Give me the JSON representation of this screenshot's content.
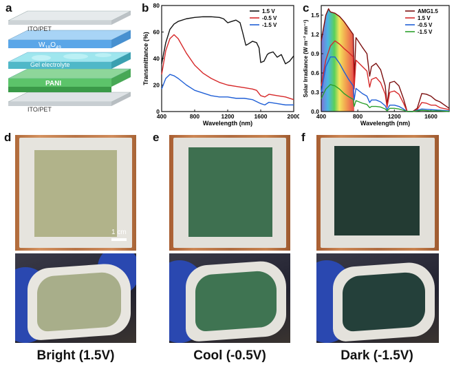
{
  "panels": {
    "a": "a",
    "b": "b",
    "c": "c",
    "d": "d",
    "e": "e",
    "f": "f"
  },
  "device_stack": {
    "layers": [
      "ITO/PET",
      "W18O49",
      "Gel electrolyte",
      "PANI",
      "ITO/PET"
    ],
    "w_main": "W",
    "w_sub1": "18",
    "w_o": "O",
    "w_sub2": "49"
  },
  "colors": {
    "black": "#111111",
    "red": "#d62728",
    "blue": "#1f5fd6",
    "green": "#2ca02c",
    "maroon": "#7a0d0d",
    "layer_blue": "#5aa6e8",
    "layer_green": "#5cc46a"
  },
  "chart_data": [
    {
      "id": "b",
      "type": "line",
      "title": "",
      "xlabel": "Wavelength (nm)",
      "ylabel": "Transmittance (%)",
      "xlim": [
        400,
        2000
      ],
      "ylim": [
        0,
        80
      ],
      "xticks": [
        400,
        800,
        1200,
        1600,
        2000
      ],
      "yticks": [
        0,
        20,
        40,
        60,
        80
      ],
      "legend": "top-right",
      "series": [
        {
          "name": "1.5 V",
          "color": "#111111",
          "x": [
            400,
            450,
            500,
            550,
            600,
            700,
            800,
            900,
            1000,
            1100,
            1150,
            1200,
            1250,
            1300,
            1350,
            1380,
            1420,
            1450,
            1500,
            1550,
            1580,
            1600,
            1640,
            1680,
            1700,
            1750,
            1800,
            1850,
            1900,
            1950,
            2000
          ],
          "y": [
            36,
            52,
            62,
            66,
            68,
            70,
            71,
            71.5,
            71.5,
            71,
            70,
            67,
            68,
            69,
            67,
            60,
            50,
            51,
            53,
            52,
            48,
            37,
            38,
            43,
            44,
            45,
            41,
            43,
            36,
            38,
            42
          ]
        },
        {
          "name": "-0.5 V",
          "color": "#d62728",
          "x": [
            400,
            450,
            500,
            550,
            600,
            700,
            800,
            900,
            1000,
            1100,
            1200,
            1300,
            1400,
            1500,
            1550,
            1600,
            1650,
            1700,
            1800,
            1900,
            2000
          ],
          "y": [
            28,
            46,
            55,
            58,
            55,
            44,
            35,
            29,
            25,
            22,
            20,
            19,
            18,
            17,
            16,
            12,
            11,
            13,
            12,
            11,
            9
          ]
        },
        {
          "name": "-1.5 V",
          "color": "#1f5fd6",
          "x": [
            400,
            450,
            500,
            550,
            600,
            700,
            800,
            900,
            1000,
            1100,
            1200,
            1300,
            1400,
            1500,
            1600,
            1650,
            1700,
            1800,
            1900,
            2000
          ],
          "y": [
            17,
            25,
            28,
            27,
            25,
            20,
            16,
            14,
            12,
            11,
            11,
            10,
            10,
            9,
            6,
            5,
            7,
            6,
            5,
            5
          ]
        }
      ]
    },
    {
      "id": "c",
      "type": "line",
      "title": "",
      "xlabel": "Wavelength (nm)",
      "ylabel": "Solar Irradiance (W m⁻² nm⁻¹)",
      "xlim": [
        400,
        1800
      ],
      "ylim": [
        0,
        1.65
      ],
      "xticks": [
        400,
        800,
        1200,
        1600
      ],
      "yticks": [
        0.0,
        0.3,
        0.6,
        0.9,
        1.2,
        1.5
      ],
      "legend": "top-right",
      "series": [
        {
          "name": "AMG1.5",
          "color": "#7a0d0d",
          "x": [
            400,
            450,
            480,
            500,
            550,
            600,
            650,
            700,
            750,
            760,
            780,
            850,
            900,
            930,
            950,
            1000,
            1050,
            1100,
            1120,
            1150,
            1200,
            1250,
            1300,
            1340,
            1400,
            1450,
            1500,
            1550,
            1600,
            1650,
            1700,
            1750,
            1800
          ],
          "y": [
            1.1,
            1.5,
            1.6,
            1.55,
            1.53,
            1.48,
            1.4,
            1.3,
            1.2,
            0.5,
            1.15,
            1.0,
            0.9,
            0.55,
            0.7,
            0.75,
            0.65,
            0.4,
            0.1,
            0.45,
            0.47,
            0.4,
            0.2,
            0.0,
            0.0,
            0.05,
            0.28,
            0.27,
            0.24,
            0.18,
            0.15,
            0.1,
            0.05
          ]
        },
        {
          "name": "1.5 V",
          "color": "#d62728",
          "x": [
            400,
            450,
            500,
            550,
            600,
            650,
            700,
            750,
            760,
            780,
            850,
            900,
            930,
            950,
            1000,
            1050,
            1100,
            1120,
            1150,
            1200,
            1250,
            1300,
            1340,
            1400,
            1450,
            1500,
            1550,
            1600,
            1650,
            1700,
            1800
          ],
          "y": [
            0.4,
            0.8,
            1.02,
            1.1,
            1.05,
            0.98,
            0.92,
            0.85,
            0.35,
            0.8,
            0.7,
            0.63,
            0.38,
            0.5,
            0.53,
            0.45,
            0.27,
            0.07,
            0.3,
            0.32,
            0.27,
            0.13,
            0.0,
            0.0,
            0.03,
            0.14,
            0.13,
            0.1,
            0.1,
            0.06,
            0.03
          ]
        },
        {
          "name": "-0.5 V",
          "color": "#1f5fd6",
          "x": [
            400,
            450,
            500,
            550,
            600,
            650,
            700,
            750,
            760,
            780,
            850,
            900,
            930,
            950,
            1000,
            1050,
            1100,
            1120,
            1150,
            1200,
            1250,
            1300,
            1340,
            1400,
            1500,
            1600,
            1700,
            1800
          ],
          "y": [
            0.3,
            0.7,
            0.85,
            0.85,
            0.75,
            0.62,
            0.5,
            0.4,
            0.18,
            0.36,
            0.28,
            0.24,
            0.14,
            0.18,
            0.18,
            0.15,
            0.09,
            0.03,
            0.1,
            0.1,
            0.08,
            0.04,
            0.0,
            0.0,
            0.04,
            0.03,
            0.02,
            0.01
          ]
        },
        {
          "name": "-1.5 V",
          "color": "#2ca02c",
          "x": [
            400,
            450,
            500,
            550,
            600,
            650,
            700,
            750,
            760,
            780,
            850,
            900,
            930,
            950,
            1000,
            1050,
            1100,
            1120,
            1150,
            1200,
            1250,
            1300,
            1340,
            1400,
            1500,
            1600,
            1700,
            1800
          ],
          "y": [
            0.2,
            0.35,
            0.42,
            0.4,
            0.35,
            0.28,
            0.23,
            0.19,
            0.08,
            0.17,
            0.13,
            0.11,
            0.06,
            0.08,
            0.08,
            0.07,
            0.04,
            0.01,
            0.05,
            0.05,
            0.04,
            0.02,
            0.0,
            0.0,
            0.02,
            0.01,
            0.01,
            0.0
          ]
        }
      ]
    }
  ],
  "photos": {
    "scale_bar": "1 cm",
    "captions": [
      "Bright (1.5V)",
      "Cool (-0.5V)",
      "Dark (-1.5V)"
    ],
    "film_colors": [
      "#b1b38a",
      "#3e7050",
      "#233b33"
    ]
  }
}
